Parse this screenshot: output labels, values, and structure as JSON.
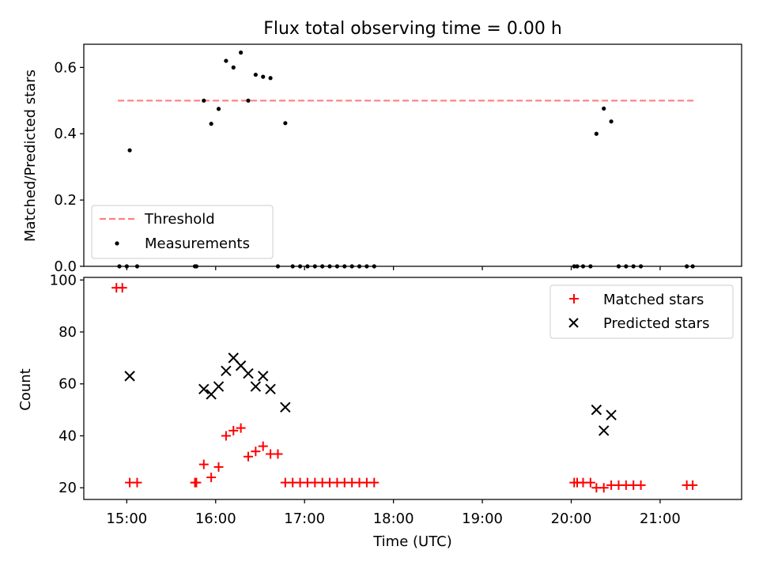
{
  "chart_data": [
    {
      "type": "scatter",
      "title": "Flux total observing time = 0.00 h",
      "xlabel": "",
      "ylabel": "Matched/Predicted stars",
      "xlim": [
        "14:31",
        "21:55"
      ],
      "ylim": [
        0,
        0.67
      ],
      "yticks": [
        0,
        0.2,
        0.4,
        0.6
      ],
      "ytick_labels": [
        "0.0",
        "0.2",
        "0.4",
        "0.6"
      ],
      "xticks": [
        "15:00",
        "16:00",
        "17:00",
        "18:00",
        "19:00",
        "20:00",
        "21:00"
      ],
      "show_xtick_labels": false,
      "grid": false,
      "legend_placement": "lower-left",
      "threshold": {
        "name": "Threshold",
        "y": 0.5,
        "x_start": "14:54",
        "x_end": "21:24",
        "color": "#ff7f7f",
        "style": "dashed"
      },
      "series": [
        {
          "name": "Measurements",
          "marker": "dot",
          "color": "#000000",
          "points": [
            [
              "14:55",
              0
            ],
            [
              "15:00",
              0
            ],
            [
              "15:02",
              0.35
            ],
            [
              "15:07",
              0
            ],
            [
              "15:46",
              0
            ],
            [
              "15:47",
              0
            ],
            [
              "15:52",
              0.5
            ],
            [
              "15:57",
              0.43
            ],
            [
              "16:02",
              0.475
            ],
            [
              "16:07",
              0.62
            ],
            [
              "16:12",
              0.6
            ],
            [
              "16:17",
              0.645
            ],
            [
              "16:22",
              0.5
            ],
            [
              "16:27",
              0.578
            ],
            [
              "16:32",
              0.572
            ],
            [
              "16:37",
              0.568
            ],
            [
              "16:42",
              0
            ],
            [
              "16:47",
              0.432
            ],
            [
              "16:52",
              0
            ],
            [
              "16:57",
              0
            ],
            [
              "17:02",
              0
            ],
            [
              "17:07",
              0
            ],
            [
              "17:12",
              0
            ],
            [
              "17:17",
              0
            ],
            [
              "17:22",
              0
            ],
            [
              "17:27",
              0
            ],
            [
              "17:32",
              0
            ],
            [
              "17:37",
              0
            ],
            [
              "17:42",
              0
            ],
            [
              "17:47",
              0
            ],
            [
              "20:02",
              0
            ],
            [
              "20:04",
              0
            ],
            [
              "20:08",
              0
            ],
            [
              "20:13",
              0
            ],
            [
              "20:17",
              0.4
            ],
            [
              "20:22",
              0.476
            ],
            [
              "20:27",
              0.437
            ],
            [
              "20:32",
              0
            ],
            [
              "20:37",
              0
            ],
            [
              "20:42",
              0
            ],
            [
              "20:47",
              0
            ],
            [
              "21:18",
              0
            ],
            [
              "21:22",
              0
            ]
          ]
        }
      ]
    },
    {
      "type": "scatter",
      "title": "",
      "xlabel": "Time (UTC)",
      "ylabel": "Count",
      "xlim": [
        "14:31",
        "21:55"
      ],
      "ylim": [
        15.5,
        101
      ],
      "yticks": [
        20,
        40,
        60,
        80,
        100
      ],
      "ytick_labels": [
        "20",
        "40",
        "60",
        "80",
        "100"
      ],
      "xticks": [
        "15:00",
        "16:00",
        "17:00",
        "18:00",
        "19:00",
        "20:00",
        "21:00"
      ],
      "grid": false,
      "legend_placement": "upper-right",
      "series": [
        {
          "name": "Matched stars",
          "marker": "plus",
          "color": "#ff0000",
          "points": [
            [
              "14:53",
              97
            ],
            [
              "14:57",
              97
            ],
            [
              "15:02",
              22
            ],
            [
              "15:07",
              22
            ],
            [
              "15:46",
              22
            ],
            [
              "15:47",
              22
            ],
            [
              "15:52",
              29
            ],
            [
              "15:57",
              24
            ],
            [
              "16:02",
              28
            ],
            [
              "16:07",
              40
            ],
            [
              "16:12",
              42
            ],
            [
              "16:17",
              43
            ],
            [
              "16:22",
              32
            ],
            [
              "16:27",
              34
            ],
            [
              "16:32",
              36
            ],
            [
              "16:37",
              33
            ],
            [
              "16:42",
              33
            ],
            [
              "16:47",
              22
            ],
            [
              "16:52",
              22
            ],
            [
              "16:57",
              22
            ],
            [
              "17:02",
              22
            ],
            [
              "17:07",
              22
            ],
            [
              "17:12",
              22
            ],
            [
              "17:17",
              22
            ],
            [
              "17:22",
              22
            ],
            [
              "17:27",
              22
            ],
            [
              "17:32",
              22
            ],
            [
              "17:37",
              22
            ],
            [
              "17:42",
              22
            ],
            [
              "17:47",
              22
            ],
            [
              "20:02",
              22
            ],
            [
              "20:04",
              22
            ],
            [
              "20:08",
              22
            ],
            [
              "20:13",
              22
            ],
            [
              "20:17",
              20
            ],
            [
              "20:22",
              20
            ],
            [
              "20:27",
              21
            ],
            [
              "20:32",
              21
            ],
            [
              "20:37",
              21
            ],
            [
              "20:42",
              21
            ],
            [
              "20:47",
              21
            ],
            [
              "21:18",
              21
            ],
            [
              "21:22",
              21
            ]
          ]
        },
        {
          "name": "Predicted stars",
          "marker": "x",
          "color": "#000000",
          "points": [
            [
              "15:02",
              63
            ],
            [
              "15:52",
              58
            ],
            [
              "15:57",
              56
            ],
            [
              "16:02",
              59
            ],
            [
              "16:07",
              65
            ],
            [
              "16:12",
              70
            ],
            [
              "16:17",
              67
            ],
            [
              "16:22",
              64
            ],
            [
              "16:27",
              59
            ],
            [
              "16:32",
              63
            ],
            [
              "16:37",
              58
            ],
            [
              "16:47",
              51
            ],
            [
              "20:17",
              50
            ],
            [
              "20:22",
              42
            ],
            [
              "20:27",
              48
            ]
          ]
        }
      ]
    }
  ]
}
